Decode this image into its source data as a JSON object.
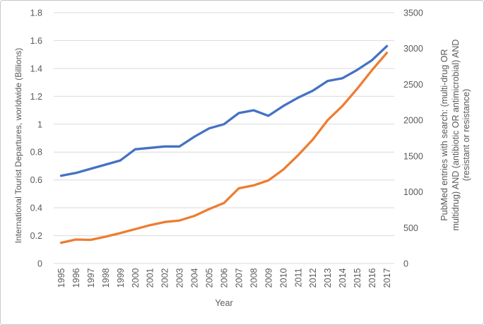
{
  "chart_data": {
    "type": "line",
    "title": "",
    "xlabel": "Year",
    "x": [
      1995,
      1996,
      1997,
      1998,
      1999,
      2000,
      2001,
      2002,
      2003,
      2004,
      2005,
      2006,
      2007,
      2008,
      2009,
      2010,
      2011,
      2012,
      2013,
      2014,
      2015,
      2016,
      2017
    ],
    "left_axis": {
      "label": "International Tourist Departures, worldwide (Billions)",
      "min": 0,
      "max": 1.8,
      "ticks": [
        0,
        0.2,
        0.4,
        0.6,
        0.8,
        1,
        1.2,
        1.4,
        1.6,
        1.8
      ],
      "tick_labels": [
        "0",
        "0.2",
        "0.4",
        "0.6",
        "0.8",
        "1",
        "1.2",
        "1.4",
        "1.6",
        "1.8"
      ]
    },
    "right_axis": {
      "label": "PubMed entries with search: (multi-drug OR multidrug) AND (antibiotic OR antimicrobial) AND (resistant or resistance)",
      "label_lines": [
        "PubMed entries with search: (multi-drug OR",
        "multidrug) AND (antibiotic OR antimicrobial) AND",
        "(resistant or resistance)"
      ],
      "min": 0,
      "max": 3500,
      "ticks": [
        0,
        500,
        1000,
        1500,
        2000,
        2500,
        3000,
        3500
      ],
      "tick_labels": [
        "0",
        "500",
        "1000",
        "1500",
        "2000",
        "2500",
        "3000",
        "3500"
      ]
    },
    "grid": true,
    "legend_position": "none",
    "series": [
      {
        "name": "International Tourist Departures, worldwide (Billions)",
        "axis": "left",
        "color": "#4472C4",
        "values": [
          0.63,
          0.65,
          0.68,
          0.71,
          0.74,
          0.82,
          0.83,
          0.84,
          0.84,
          0.91,
          0.97,
          1.0,
          1.08,
          1.1,
          1.06,
          1.13,
          1.19,
          1.24,
          1.31,
          1.33,
          1.39,
          1.46,
          1.56
        ]
      },
      {
        "name": "PubMed entries with search: (multi-drug OR multidrug) AND (antibiotic OR antimicrobial) AND (resistant or resistance)",
        "axis": "right",
        "color": "#ED7D31",
        "values": [
          290,
          335,
          330,
          375,
          425,
          480,
          535,
          580,
          600,
          665,
          760,
          845,
          1050,
          1090,
          1160,
          1310,
          1510,
          1730,
          2000,
          2200,
          2440,
          2700,
          2940
        ]
      }
    ],
    "colors": {
      "grid": "#D9D9D9",
      "text": "#595959",
      "border": "#C8C8C8",
      "background": "#FFFFFF"
    }
  }
}
